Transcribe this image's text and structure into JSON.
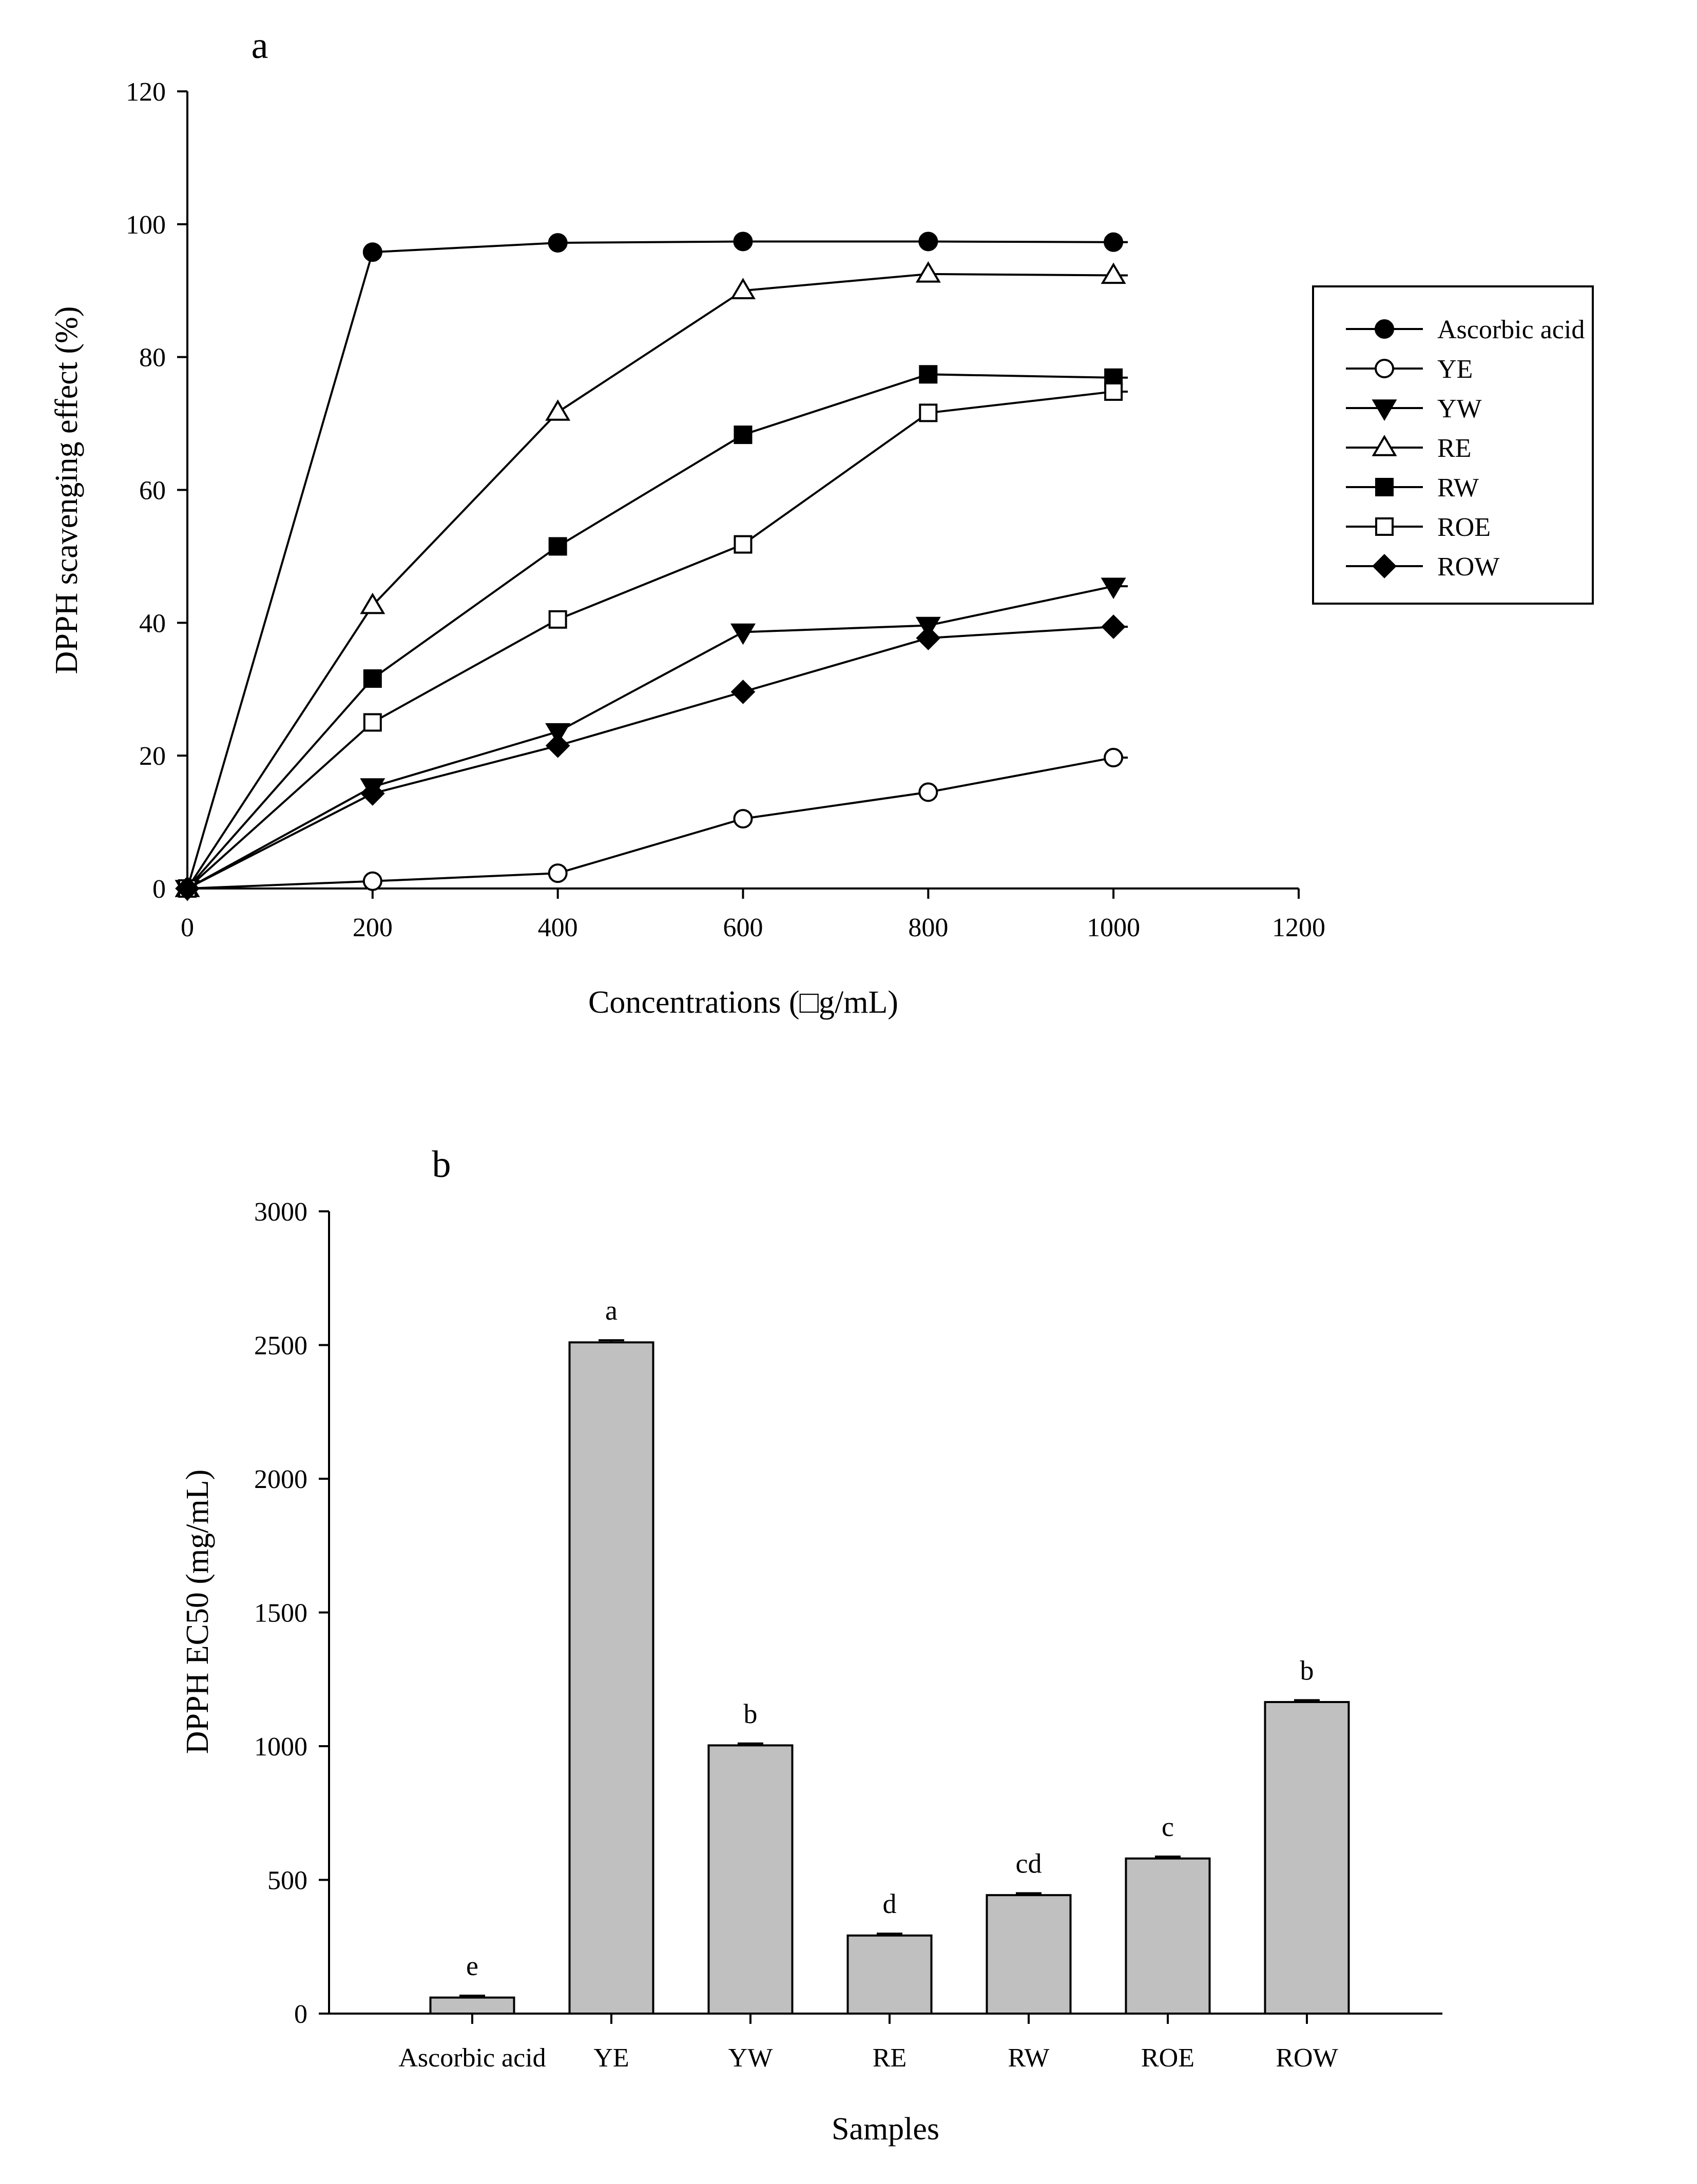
{
  "chart_data": [
    {
      "panel_label": "a",
      "type": "line",
      "xlabel": "Concentrations (□g/mL)",
      "ylabel": "DPPH scavenging effect (%)",
      "xlim": [
        0,
        1200
      ],
      "ylim": [
        0,
        120
      ],
      "xticks": [
        "0",
        "200",
        "400",
        "600",
        "800",
        "1000",
        "1200"
      ],
      "yticks": [
        "0",
        "20",
        "40",
        "60",
        "80",
        "100",
        "120"
      ],
      "x": [
        0,
        200,
        400,
        600,
        800,
        1000
      ],
      "legend_position": "right",
      "series": [
        {
          "name": "Ascorbic acid",
          "marker": "filled-circle",
          "values": [
            0,
            95.8,
            97.2,
            97.4,
            97.4,
            97.3
          ]
        },
        {
          "name": "YE",
          "marker": "open-circle",
          "values": [
            0,
            1.1,
            2.3,
            10.5,
            14.5,
            19.7
          ]
        },
        {
          "name": "YW",
          "marker": "filled-triangle-down",
          "values": [
            0,
            15.3,
            23.6,
            38.6,
            39.6,
            45.5
          ]
        },
        {
          "name": "RE",
          "marker": "open-triangle-up",
          "values": [
            0,
            42.6,
            71.7,
            90.0,
            92.5,
            92.3
          ]
        },
        {
          "name": "RW",
          "marker": "filled-square",
          "values": [
            0,
            31.6,
            51.5,
            68.3,
            77.4,
            76.9
          ]
        },
        {
          "name": "ROE",
          "marker": "open-square",
          "values": [
            0,
            25.0,
            40.5,
            51.8,
            71.6,
            74.8
          ]
        },
        {
          "name": "ROW",
          "marker": "filled-diamond",
          "values": [
            0,
            14.3,
            21.5,
            29.6,
            37.7,
            39.4
          ]
        }
      ]
    },
    {
      "panel_label": "b",
      "type": "bar",
      "xlabel": "Samples",
      "ylabel": "DPPH EC50 (mg/mL)",
      "ylim": [
        0,
        3000
      ],
      "yticks": [
        "0",
        "500",
        "1000",
        "1500",
        "2000",
        "2500",
        "3000"
      ],
      "categories": [
        "Ascorbic acid",
        "YE",
        "YW",
        "RE",
        "RW",
        "ROE",
        "ROW"
      ],
      "values": [
        60,
        2510,
        1003,
        292,
        443,
        580,
        1165
      ],
      "errors": [
        7,
        8,
        7,
        7,
        7,
        7,
        7
      ],
      "significance": [
        "e",
        "a",
        "b",
        "d",
        "cd",
        "c",
        "b"
      ],
      "bar_color": "#c0c0c0"
    }
  ]
}
